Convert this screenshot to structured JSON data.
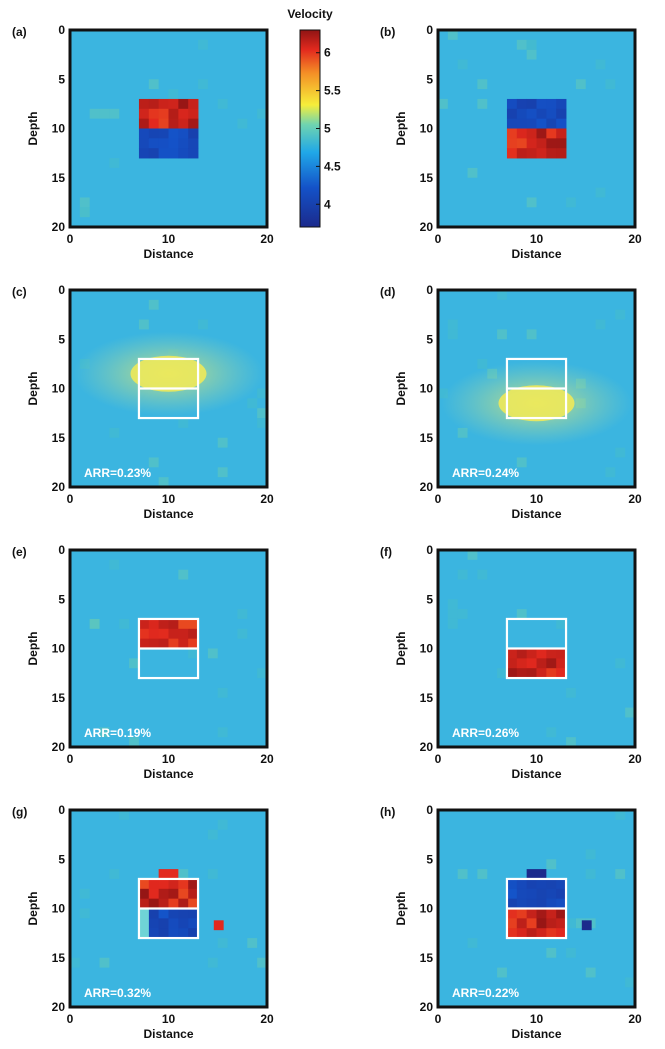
{
  "colors": {
    "background_field": "#3bb5e0",
    "outline": "#ffffff",
    "frame": "#111111"
  },
  "colorbar": {
    "title": "Velocity",
    "ticks": [
      "6",
      "5.5",
      "5",
      "4.5",
      "4"
    ],
    "tick_values": [
      6,
      5.5,
      5,
      4.5,
      4
    ],
    "range": [
      3.7,
      6.3
    ]
  },
  "chart_data": [
    {
      "type": "heatmap",
      "panel": "(a)",
      "xlabel": "Distance",
      "ylabel": "Depth",
      "xticks": [
        "0",
        "10",
        "20"
      ],
      "yticks": [
        "0",
        "5",
        "10",
        "15",
        "20"
      ],
      "xlim": [
        0,
        20
      ],
      "ylim": [
        20,
        0
      ],
      "background_velocity": 4.5,
      "blocks": [
        {
          "x": [
            7,
            13
          ],
          "y": [
            7,
            10
          ],
          "velocity": 6.0
        },
        {
          "x": [
            7,
            13
          ],
          "y": [
            10,
            13
          ],
          "velocity": 3.9
        }
      ],
      "annotation": ""
    },
    {
      "type": "heatmap",
      "panel": "(b)",
      "xlabel": "Distance",
      "ylabel": "Depth",
      "xticks": [
        "0",
        "10",
        "20"
      ],
      "yticks": [
        "0",
        "5",
        "10",
        "15",
        "20"
      ],
      "xlim": [
        0,
        20
      ],
      "ylim": [
        20,
        0
      ],
      "background_velocity": 4.5,
      "blocks": [
        {
          "x": [
            7,
            13
          ],
          "y": [
            7,
            10
          ],
          "velocity": 3.9
        },
        {
          "x": [
            7,
            13
          ],
          "y": [
            10,
            13
          ],
          "velocity": 6.0
        }
      ],
      "annotation": ""
    },
    {
      "type": "heatmap",
      "panel": "(c)",
      "xlabel": "Distance",
      "ylabel": "Depth",
      "xticks": [
        "0",
        "10",
        "20"
      ],
      "yticks": [
        "0",
        "5",
        "10",
        "15",
        "20"
      ],
      "xlim": [
        0,
        20
      ],
      "ylim": [
        20,
        0
      ],
      "background_velocity": 4.5,
      "blocks": [
        {
          "x": [
            7,
            13
          ],
          "y": [
            7,
            10
          ],
          "velocity": 5.0
        }
      ],
      "annotation": "ARR=0.23%"
    },
    {
      "type": "heatmap",
      "panel": "(d)",
      "xlabel": "Distance",
      "ylabel": "Depth",
      "xticks": [
        "0",
        "10",
        "20"
      ],
      "yticks": [
        "0",
        "5",
        "10",
        "15",
        "20"
      ],
      "xlim": [
        0,
        20
      ],
      "ylim": [
        20,
        0
      ],
      "background_velocity": 4.5,
      "blocks": [
        {
          "x": [
            7,
            13
          ],
          "y": [
            10,
            13
          ],
          "velocity": 5.0
        }
      ],
      "annotation": "ARR=0.24%"
    },
    {
      "type": "heatmap",
      "panel": "(e)",
      "xlabel": "Distance",
      "ylabel": "Depth",
      "xticks": [
        "0",
        "10",
        "20"
      ],
      "yticks": [
        "0",
        "5",
        "10",
        "15",
        "20"
      ],
      "xlim": [
        0,
        20
      ],
      "ylim": [
        20,
        0
      ],
      "background_velocity": 4.5,
      "blocks": [
        {
          "x": [
            7,
            13
          ],
          "y": [
            7,
            10
          ],
          "velocity": 6.0
        }
      ],
      "annotation": "ARR=0.19%"
    },
    {
      "type": "heatmap",
      "panel": "(f)",
      "xlabel": "Distance",
      "ylabel": "Depth",
      "xticks": [
        "0",
        "10",
        "20"
      ],
      "yticks": [
        "0",
        "5",
        "10",
        "15",
        "20"
      ],
      "xlim": [
        0,
        20
      ],
      "ylim": [
        20,
        0
      ],
      "background_velocity": 4.5,
      "blocks": [
        {
          "x": [
            7,
            13
          ],
          "y": [
            10,
            13
          ],
          "velocity": 6.0
        }
      ],
      "annotation": "ARR=0.26%"
    },
    {
      "type": "heatmap",
      "panel": "(g)",
      "xlabel": "Distance",
      "ylabel": "Depth",
      "xticks": [
        "0",
        "10",
        "20"
      ],
      "yticks": [
        "0",
        "5",
        "10",
        "15",
        "20"
      ],
      "xlim": [
        0,
        20
      ],
      "ylim": [
        20,
        0
      ],
      "background_velocity": 4.5,
      "blocks": [
        {
          "x": [
            7,
            13
          ],
          "y": [
            7,
            10
          ],
          "velocity": 6.0
        },
        {
          "x": [
            8,
            13
          ],
          "y": [
            10,
            13
          ],
          "velocity": 3.9
        }
      ],
      "annotation": "ARR=0.32%"
    },
    {
      "type": "heatmap",
      "panel": "(h)",
      "xlabel": "Distance",
      "ylabel": "Depth",
      "xticks": [
        "0",
        "10",
        "20"
      ],
      "yticks": [
        "0",
        "5",
        "10",
        "15",
        "20"
      ],
      "xlim": [
        0,
        20
      ],
      "ylim": [
        20,
        0
      ],
      "background_velocity": 4.5,
      "blocks": [
        {
          "x": [
            7,
            13
          ],
          "y": [
            7,
            10
          ],
          "velocity": 3.9
        },
        {
          "x": [
            7,
            13
          ],
          "y": [
            10,
            13
          ],
          "velocity": 6.0
        }
      ],
      "annotation": "ARR=0.22%"
    }
  ]
}
